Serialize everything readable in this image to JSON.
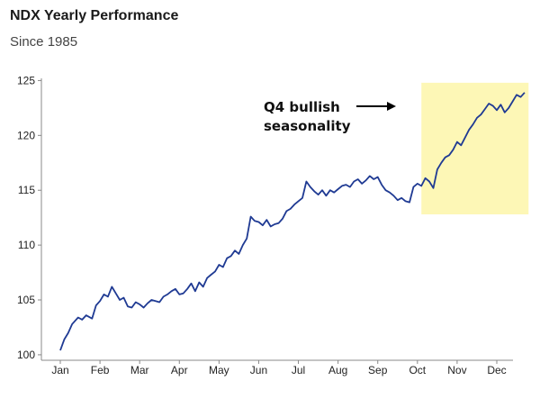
{
  "title": "NDX Yearly Performance",
  "subtitle": "Since 1985",
  "chart_data": {
    "type": "line",
    "title": "NDX Yearly Performance",
    "subtitle": "Since 1985",
    "xlabel": "",
    "ylabel": "",
    "x_ticks": [
      "Jan",
      "Feb",
      "Mar",
      "Apr",
      "May",
      "Jun",
      "Jul",
      "Aug",
      "Sep",
      "Oct",
      "Nov",
      "Dec"
    ],
    "y_ticks": [
      "100",
      "105",
      "110",
      "115",
      "120",
      "125"
    ],
    "xlim": [
      0,
      12
    ],
    "ylim": [
      99.5,
      125.2
    ],
    "grid": false,
    "colors": {
      "line": "#1f3a93",
      "highlight": "#fdf7b6",
      "arrow": "#000000"
    },
    "annotation": {
      "text_line1": "Q4 bullish",
      "text_line2": "seasonality",
      "highlight_x_range": [
        9.1,
        11.8
      ],
      "highlight_y_range": [
        112.8,
        124.8
      ]
    },
    "series": [
      {
        "name": "NDX",
        "x": [
          0.0,
          0.1,
          0.2,
          0.3,
          0.45,
          0.55,
          0.65,
          0.8,
          0.9,
          1.0,
          1.1,
          1.2,
          1.3,
          1.4,
          1.5,
          1.6,
          1.7,
          1.8,
          1.9,
          2.0,
          2.1,
          2.2,
          2.3,
          2.4,
          2.5,
          2.6,
          2.7,
          2.8,
          2.9,
          3.0,
          3.1,
          3.2,
          3.3,
          3.4,
          3.5,
          3.6,
          3.7,
          3.8,
          3.9,
          4.0,
          4.1,
          4.2,
          4.3,
          4.4,
          4.5,
          4.6,
          4.7,
          4.8,
          4.9,
          5.0,
          5.1,
          5.2,
          5.3,
          5.4,
          5.5,
          5.6,
          5.7,
          5.8,
          5.9,
          6.0,
          6.1,
          6.2,
          6.3,
          6.4,
          6.5,
          6.6,
          6.7,
          6.8,
          6.9,
          7.0,
          7.1,
          7.2,
          7.3,
          7.4,
          7.5,
          7.6,
          7.7,
          7.8,
          7.9,
          8.0,
          8.1,
          8.2,
          8.3,
          8.4,
          8.5,
          8.6,
          8.7,
          8.8,
          8.9,
          9.0,
          9.1,
          9.2,
          9.3,
          9.4,
          9.5,
          9.6,
          9.7,
          9.8,
          9.9,
          10.0,
          10.1,
          10.2,
          10.3,
          10.4,
          10.5,
          10.6,
          10.7,
          10.8,
          10.9,
          11.0,
          11.1,
          11.2,
          11.3,
          11.4,
          11.5,
          11.6,
          11.7
        ],
        "values": [
          100.4,
          101.4,
          102.0,
          102.8,
          103.4,
          103.2,
          103.6,
          103.3,
          104.5,
          104.9,
          105.5,
          105.3,
          106.2,
          105.6,
          105.0,
          105.2,
          104.4,
          104.3,
          104.8,
          104.6,
          104.3,
          104.7,
          105.0,
          104.9,
          104.8,
          105.3,
          105.5,
          105.8,
          106.0,
          105.5,
          105.6,
          106.0,
          106.5,
          105.8,
          106.6,
          106.2,
          107.0,
          107.3,
          107.6,
          108.2,
          108.0,
          108.8,
          109.0,
          109.5,
          109.2,
          110.0,
          110.6,
          112.6,
          112.2,
          112.1,
          111.8,
          112.3,
          111.7,
          111.9,
          112.0,
          112.4,
          113.1,
          113.3,
          113.7,
          114.0,
          114.3,
          115.8,
          115.3,
          114.9,
          114.6,
          115.0,
          114.5,
          115.0,
          114.8,
          115.1,
          115.4,
          115.5,
          115.3,
          115.8,
          116.0,
          115.6,
          115.9,
          116.3,
          116.0,
          116.2,
          115.5,
          115.0,
          114.8,
          114.5,
          114.1,
          114.3,
          114.0,
          113.9,
          115.3,
          115.6,
          115.4,
          116.1,
          115.8,
          115.2,
          116.9,
          117.5,
          118.0,
          118.2,
          118.7,
          119.4,
          119.1,
          119.8,
          120.5,
          121.0,
          121.6,
          121.9,
          122.4,
          122.9,
          122.7,
          122.3,
          122.8,
          122.1,
          122.5,
          123.1,
          123.7,
          123.5,
          123.9
        ]
      }
    ]
  }
}
